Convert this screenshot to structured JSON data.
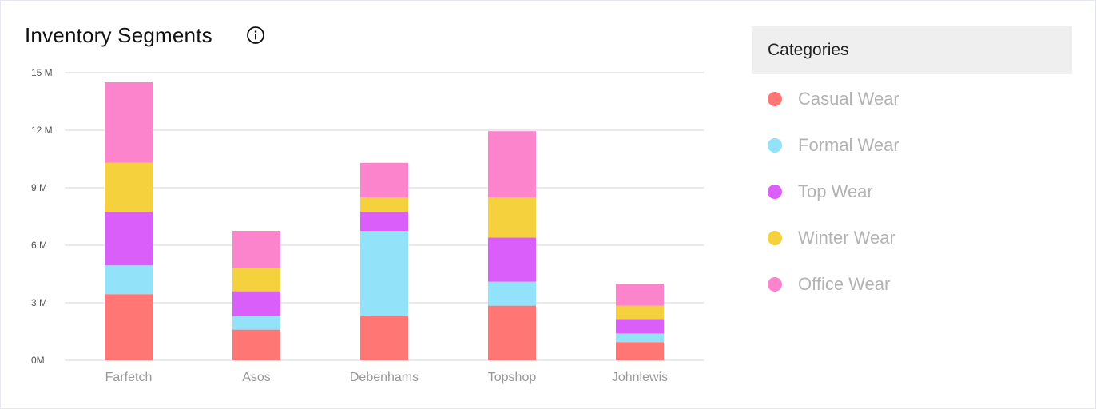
{
  "header": {
    "title": "Inventory Segments",
    "info_icon": "info-icon"
  },
  "legend": {
    "title": "Categories",
    "items": [
      {
        "label": "Casual Wear",
        "color": "#ff7675"
      },
      {
        "label": "Formal Wear",
        "color": "#92e2f9"
      },
      {
        "label": "Top Wear",
        "color": "#da5ef9"
      },
      {
        "label": "Winter Wear",
        "color": "#f5d13d"
      },
      {
        "label": "Office Wear",
        "color": "#fb84cd"
      }
    ]
  },
  "chart_data": {
    "type": "bar",
    "stacked": true,
    "title": "Inventory Segments",
    "categories": [
      "Farfetch",
      "Asos",
      "Debenhams",
      "Topshop",
      "Johnlewis"
    ],
    "series": [
      {
        "name": "Casual Wear",
        "color": "#ff7675",
        "values": [
          3.45,
          1.6,
          2.3,
          2.85,
          0.95
        ]
      },
      {
        "name": "Formal Wear",
        "color": "#92e2f9",
        "values": [
          1.5,
          0.7,
          4.45,
          1.25,
          0.45
        ]
      },
      {
        "name": "Top Wear",
        "color": "#da5ef9",
        "values": [
          2.8,
          1.3,
          1.0,
          2.3,
          0.75
        ]
      },
      {
        "name": "Winter Wear",
        "color": "#f5d13d",
        "values": [
          2.55,
          1.2,
          0.75,
          2.1,
          0.7
        ]
      },
      {
        "name": "Office Wear",
        "color": "#fb84cd",
        "values": [
          4.2,
          1.95,
          1.8,
          3.45,
          1.15
        ]
      }
    ],
    "yticks": [
      {
        "value": 0,
        "label": "0M"
      },
      {
        "value": 3,
        "label": "3 M"
      },
      {
        "value": 6,
        "label": "6 M"
      },
      {
        "value": 9,
        "label": "9 M"
      },
      {
        "value": 12,
        "label": "12 M"
      },
      {
        "value": 15,
        "label": "15 M"
      }
    ],
    "ylim": [
      0,
      15
    ],
    "grid": true,
    "legend_position": "right"
  }
}
